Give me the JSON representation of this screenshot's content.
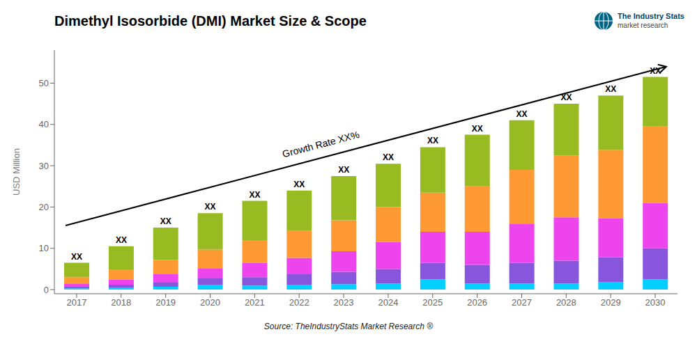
{
  "chart_data": {
    "type": "bar",
    "title": "Dimethyl Isosorbide (DMI) Market Size & Scope",
    "ylabel": "USD Million",
    "categories": [
      2017,
      2018,
      2019,
      2020,
      2021,
      2022,
      2023,
      2024,
      2025,
      2026,
      2027,
      2028,
      2029,
      2030
    ],
    "series": [
      {
        "color": "#00cfff",
        "values": [
          0.3,
          0.5,
          0.7,
          1.2,
          1.0,
          1.2,
          1.3,
          1.5,
          2.5,
          1.5,
          1.5,
          1.5,
          1.8,
          2.5
        ]
      },
      {
        "color": "#8855dd",
        "values": [
          0.4,
          0.7,
          1.0,
          1.5,
          2.0,
          2.5,
          3.0,
          3.5,
          4.0,
          4.5,
          5.0,
          5.5,
          6.0,
          7.5
        ]
      },
      {
        "color": "#ee44ee",
        "values": [
          0.8,
          1.2,
          2.0,
          2.5,
          3.5,
          4.0,
          5.0,
          6.5,
          7.5,
          8.0,
          9.5,
          10.5,
          9.5,
          11.0
        ]
      },
      {
        "color": "#ff9933",
        "values": [
          1.5,
          2.5,
          3.5,
          4.5,
          5.5,
          6.5,
          7.5,
          8.5,
          9.5,
          11.0,
          13.0,
          15.0,
          16.5,
          18.5
        ]
      },
      {
        "color": "#99bb22",
        "values": [
          3.5,
          5.6,
          7.8,
          8.8,
          9.5,
          9.8,
          10.7,
          10.5,
          11.0,
          12.5,
          12.0,
          12.5,
          13.2,
          12.0
        ],
        "value_labels": [
          "XX",
          "XX",
          "XX",
          "XX",
          "XX",
          "XX",
          "XX",
          "XX",
          "XX",
          "XX",
          "XX",
          "XX",
          "XX",
          "XX"
        ]
      }
    ],
    "stacked": true,
    "ylim": [
      -1,
      58
    ],
    "yticks": [
      0,
      10,
      20,
      30,
      40,
      50
    ],
    "grid": false,
    "annotations": [
      "Growth Rate XX%",
      "Source: TheIndustryStats Market Research ®",
      "The Industry Stats",
      "market research"
    ]
  }
}
